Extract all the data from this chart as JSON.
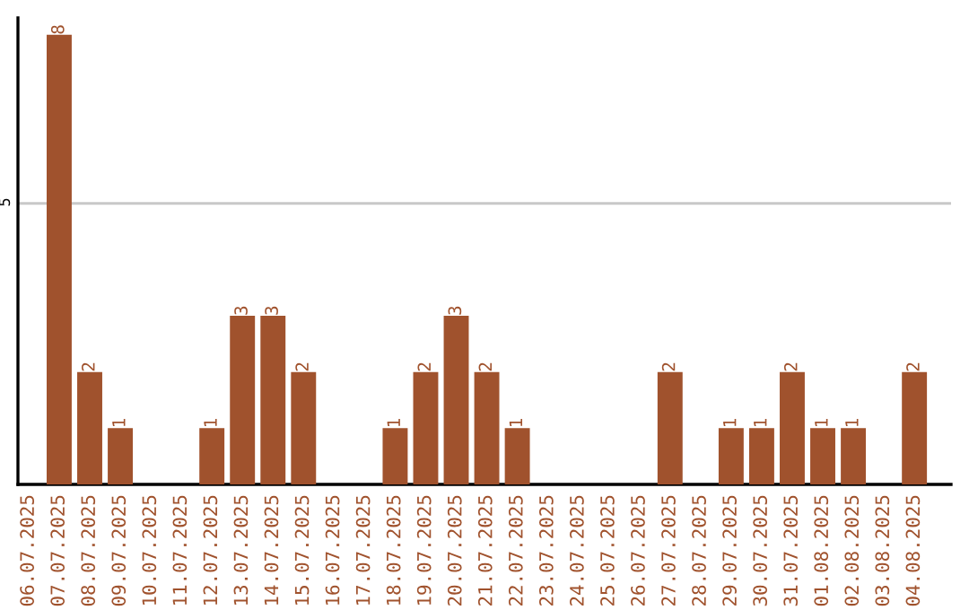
{
  "chart_data": {
    "type": "bar",
    "categories": [
      "06.07.2025",
      "07.07.2025",
      "08.07.2025",
      "09.07.2025",
      "10.07.2025",
      "11.07.2025",
      "12.07.2025",
      "13.07.2025",
      "14.07.2025",
      "15.07.2025",
      "16.07.2025",
      "17.07.2025",
      "18.07.2025",
      "19.07.2025",
      "20.07.2025",
      "21.07.2025",
      "22.07.2025",
      "23.07.2025",
      "24.07.2025",
      "25.07.2025",
      "26.07.2025",
      "27.07.2025",
      "28.07.2025",
      "29.07.2025",
      "30.07.2025",
      "31.07.2025",
      "01.08.2025",
      "02.08.2025",
      "03.08.2025",
      "04.08.2025"
    ],
    "values": [
      0,
      8,
      2,
      1,
      0,
      0,
      1,
      3,
      3,
      2,
      0,
      0,
      1,
      2,
      3,
      2,
      1,
      0,
      0,
      0,
      0,
      2,
      0,
      1,
      1,
      2,
      1,
      1,
      0,
      2
    ],
    "value_labels": [
      null,
      "8",
      "2",
      "1",
      null,
      null,
      "1",
      "3",
      "3",
      "2",
      null,
      null,
      "1",
      "2",
      "3",
      "2",
      "1",
      null,
      null,
      null,
      null,
      "2",
      null,
      "1",
      "1",
      "2",
      "1",
      "1",
      null,
      "2"
    ],
    "color": "#a0522d",
    "ylim": [
      0,
      8.3
    ],
    "yticks": [
      5
    ],
    "grid": "y"
  }
}
